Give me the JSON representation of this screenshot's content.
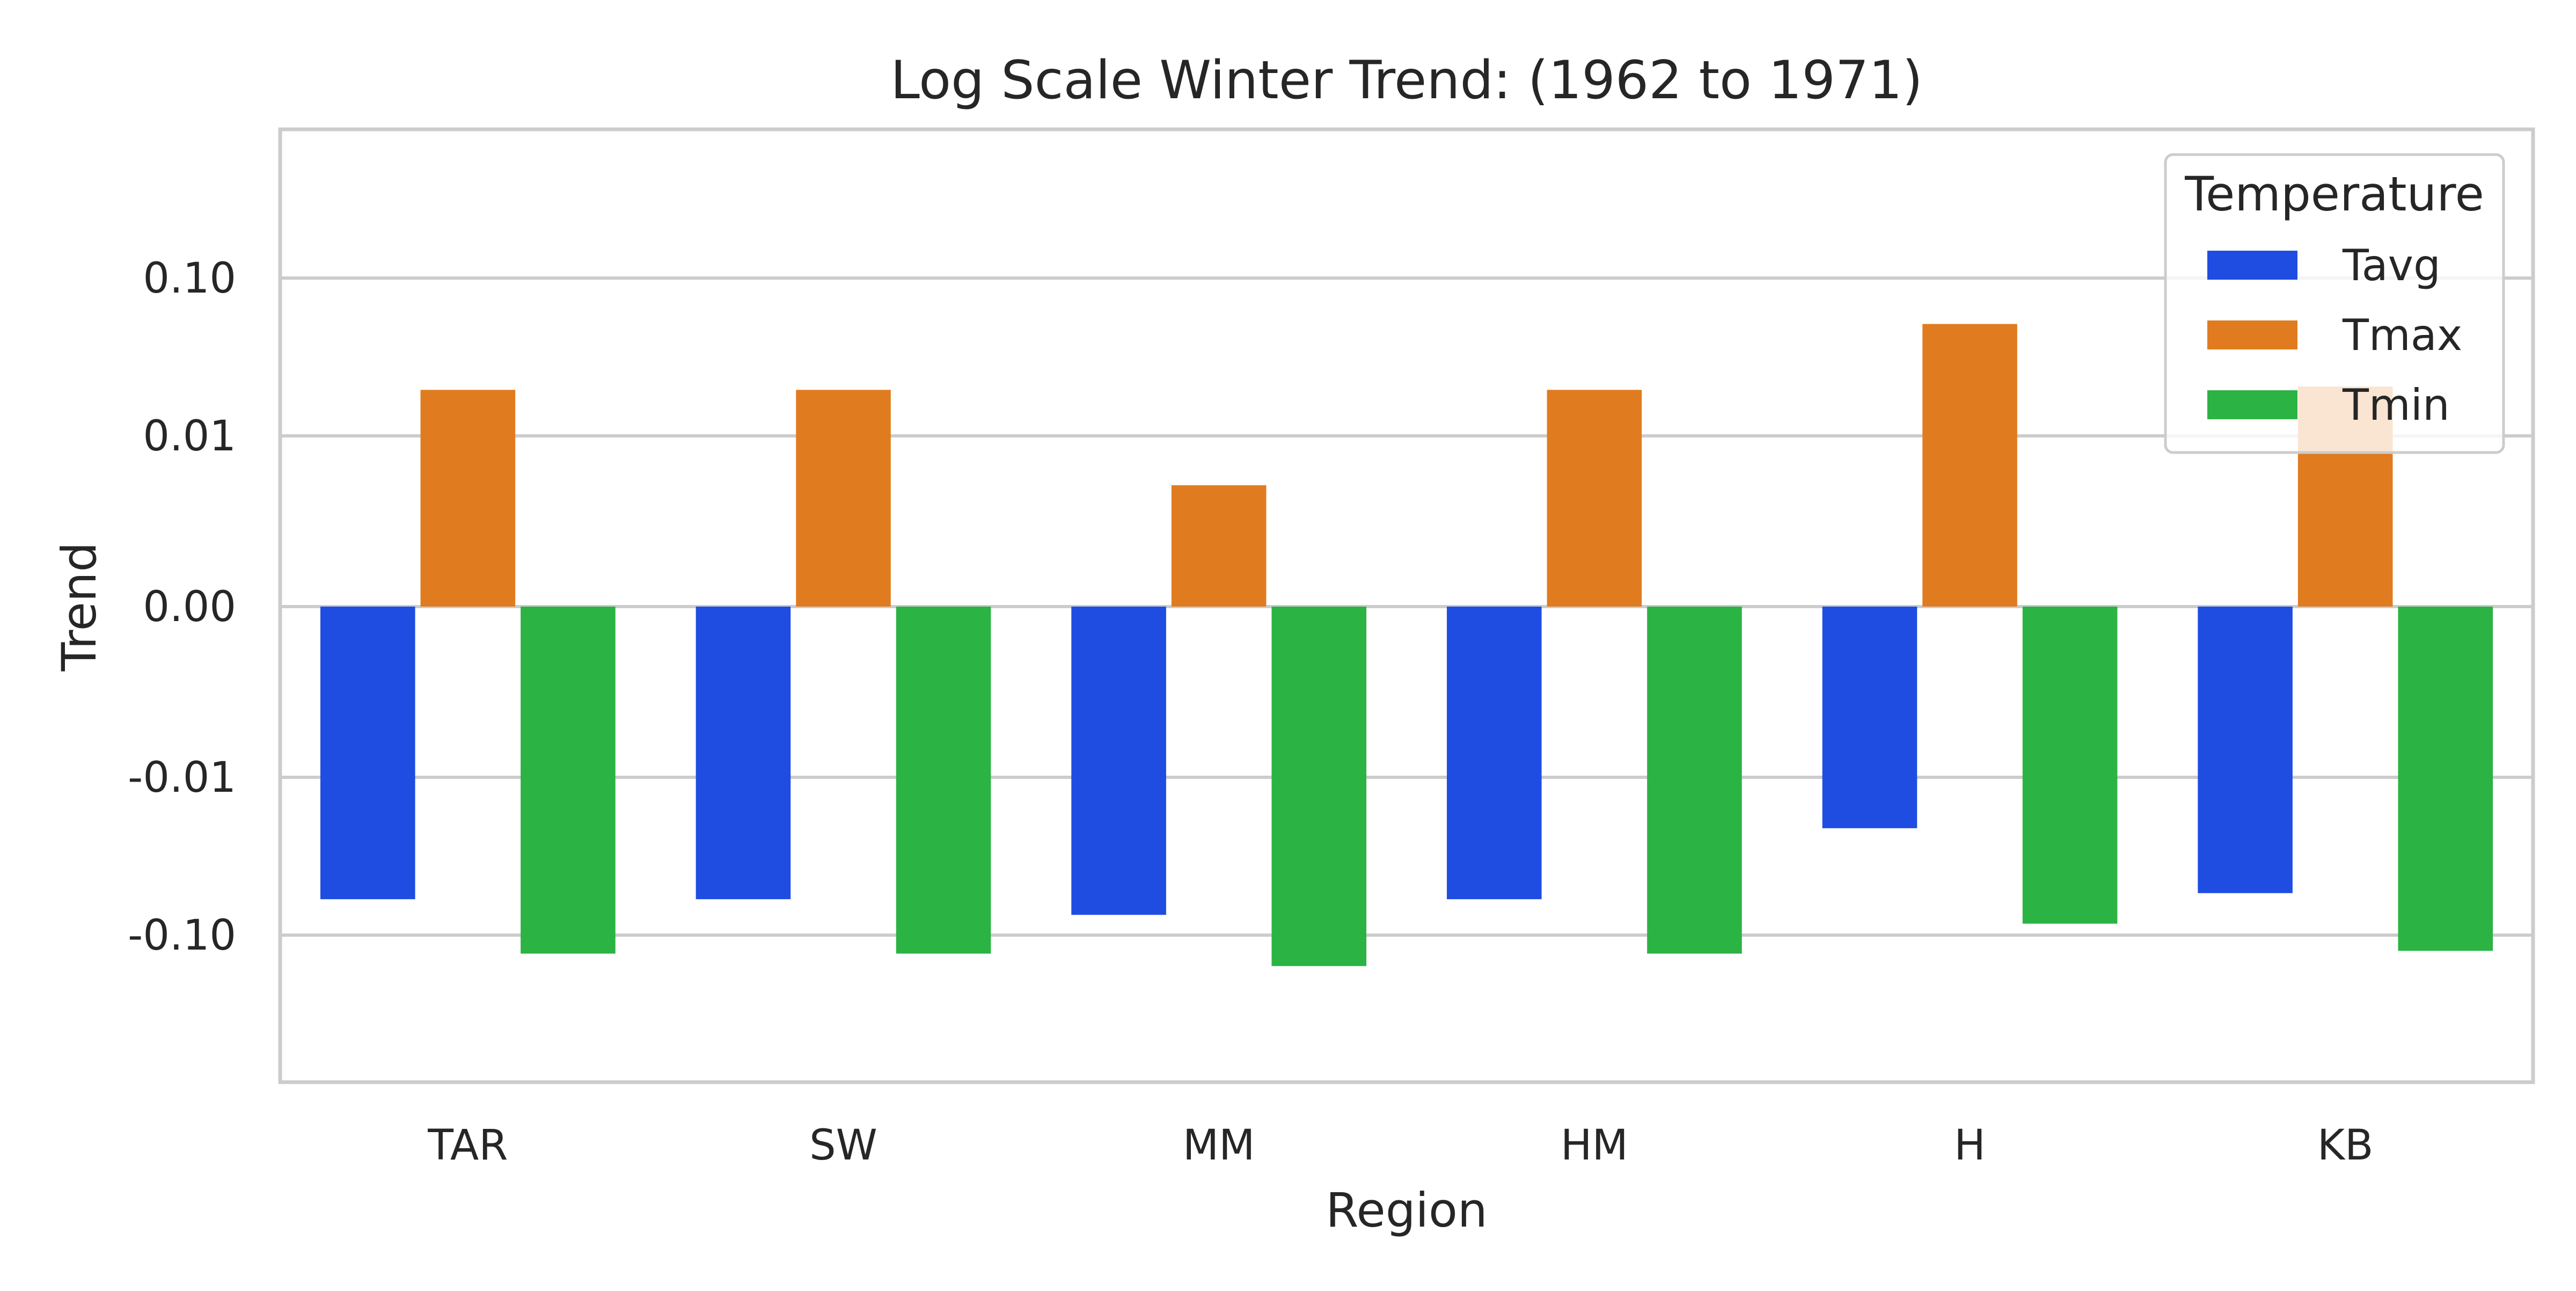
{
  "chart_data": {
    "type": "bar",
    "title": "Log Scale Winter Trend: (1962 to 1971)",
    "xlabel": "Region",
    "ylabel": "Trend",
    "scale": "symlog",
    "categories": [
      "TAR",
      "SW",
      "MM",
      "HM",
      "H",
      "KB"
    ],
    "yticks": [
      {
        "value": 0.1,
        "label": "0.10"
      },
      {
        "value": 0.01,
        "label": "0.01"
      },
      {
        "value": 0,
        "label": "0.00"
      },
      {
        "value": -0.01,
        "label": "-0.01"
      },
      {
        "value": -0.1,
        "label": "-0.10"
      }
    ],
    "ylim": [
      -0.5,
      0.5
    ],
    "series": [
      {
        "name": "Tavg",
        "color": "#1f4de2",
        "values": [
          -0.06,
          -0.06,
          -0.075,
          -0.06,
          -0.0215,
          -0.055
        ]
      },
      {
        "name": "Tmax",
        "color": "#e07c1f",
        "values": [
          0.02,
          0.02,
          0.0045,
          0.02,
          0.052,
          0.021
        ]
      },
      {
        "name": "Tmin",
        "color": "#2bb344",
        "values": [
          -0.13,
          -0.13,
          -0.155,
          -0.13,
          -0.085,
          -0.125
        ]
      }
    ],
    "legend": {
      "title": "Temperature",
      "position": "top-right"
    },
    "grid": true
  }
}
